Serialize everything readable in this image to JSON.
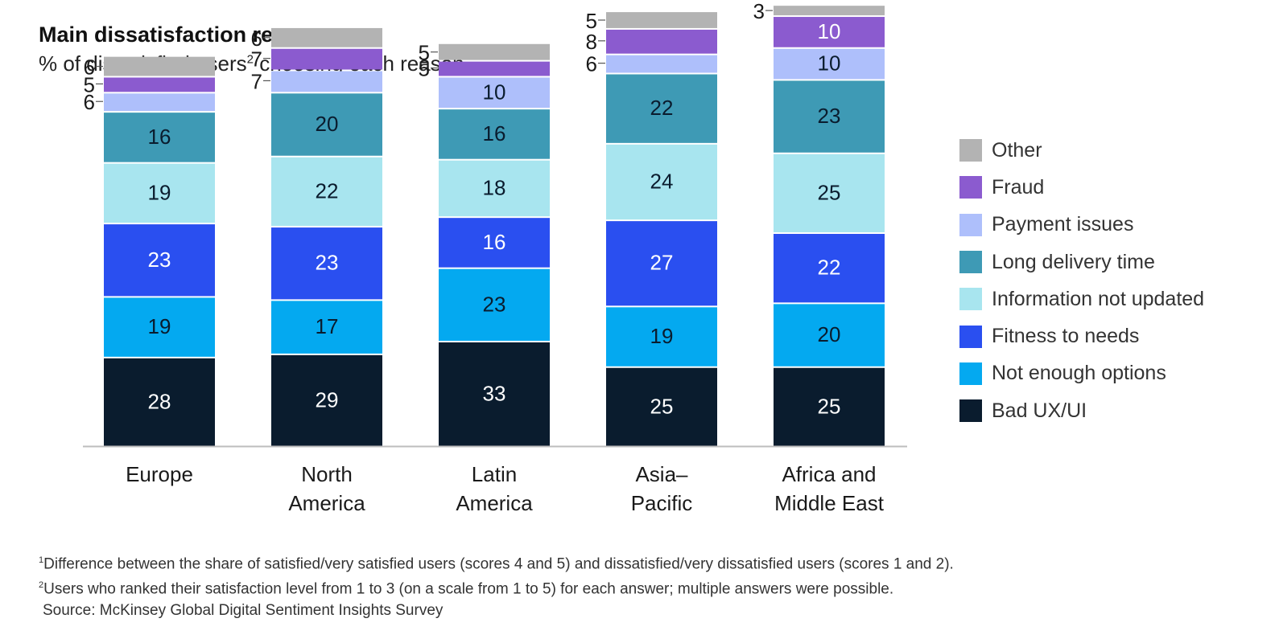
{
  "title": "Main dissatisfaction reason",
  "subtitle": {
    "text": "% of dissatisfied users",
    "sup": "2",
    "tail": " choosing each reason"
  },
  "chart_data": {
    "type": "bar",
    "stacked": true,
    "categories": [
      [
        "Europe"
      ],
      [
        "North",
        "America"
      ],
      [
        "Latin",
        "America"
      ],
      [
        "Asia–",
        "Pacific"
      ],
      [
        "Africa and",
        "Middle East"
      ]
    ],
    "series": [
      {
        "name": "Bad UX/UI",
        "color": "#0a1c2e",
        "label_color": "#ffffff",
        "values": [
          28,
          29,
          33,
          25,
          25
        ]
      },
      {
        "name": "Not enough options",
        "color": "#04a9f0",
        "label_color": "#0a1c2e",
        "values": [
          19,
          17,
          23,
          19,
          20
        ]
      },
      {
        "name": "Fitness to needs",
        "color": "#2a4ff0",
        "label_color": "#ffffff",
        "values": [
          23,
          23,
          16,
          27,
          22
        ]
      },
      {
        "name": "Information not updated",
        "color": "#a8e5ef",
        "label_color": "#0a1c2e",
        "values": [
          19,
          22,
          18,
          24,
          25
        ]
      },
      {
        "name": "Long delivery time",
        "color": "#3e9ab5",
        "label_color": "#0a1c2e",
        "values": [
          16,
          20,
          16,
          22,
          23
        ]
      },
      {
        "name": "Payment issues",
        "color": "#aebffb",
        "label_color": "#0a1c2e",
        "values": [
          6,
          7,
          10,
          6,
          10
        ]
      },
      {
        "name": "Fraud",
        "color": "#8b5bcf",
        "label_color": "#ffffff",
        "values": [
          5,
          7,
          5,
          8,
          10
        ]
      },
      {
        "name": "Other",
        "color": "#b3b3b3",
        "label_color": "#0a1c2e",
        "values": [
          6,
          6,
          5,
          5,
          3
        ]
      }
    ],
    "legend_position": "right",
    "grid": false
  },
  "footnotes": {
    "note1_sup": "1",
    "note1": "Difference between the share of satisfied/very satisfied users (scores 4 and 5) and dissatisfied/very dissatisfied users (scores 1 and 2).",
    "note2_sup": "2",
    "note2": "Users who ranked their satisfaction level from 1 to 3 (on a scale from 1 to 5) for each answer; multiple answers were possible.",
    "source": "Source: McKinsey Global Digital Sentiment Insights Survey"
  }
}
